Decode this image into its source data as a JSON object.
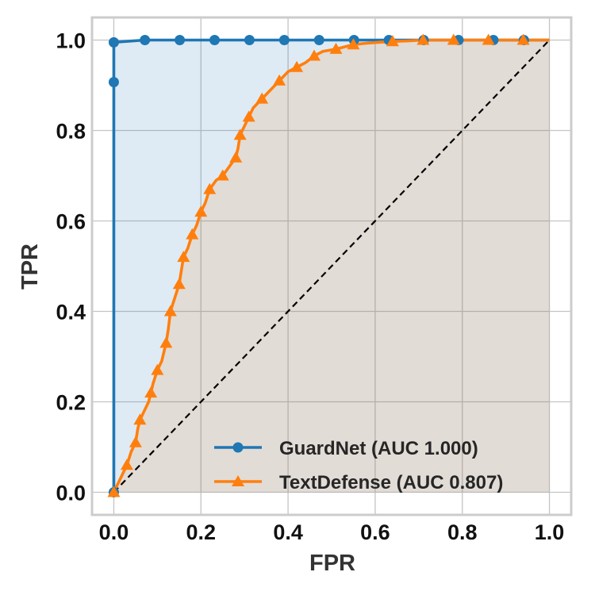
{
  "chart_data": {
    "type": "line",
    "title": "",
    "xlabel": "FPR",
    "ylabel": "TPR",
    "xlim": [
      -0.05,
      1.05
    ],
    "ylim": [
      -0.05,
      1.05
    ],
    "xticks": [
      0.0,
      0.2,
      0.4,
      0.6,
      0.8,
      1.0
    ],
    "yticks": [
      0.0,
      0.2,
      0.4,
      0.6,
      0.8,
      1.0
    ],
    "xtick_labels": [
      "0.0",
      "0.2",
      "0.4",
      "0.6",
      "0.8",
      "1.0"
    ],
    "ytick_labels": [
      "0.0",
      "0.2",
      "0.4",
      "0.6",
      "0.8",
      "1.0"
    ],
    "grid": true,
    "legend_position": "lower-right",
    "diagonal": {
      "x": [
        0,
        1
      ],
      "y": [
        0,
        1
      ],
      "style": "dashed",
      "color": "#000000"
    },
    "series": [
      {
        "name": "GuardNet (AUC 1.000)",
        "color": "#1f77b4",
        "marker": "circle",
        "fill": true,
        "x": [
          0,
          0,
          0,
          0.0714,
          0.1514,
          0.2314,
          0.3114,
          0.3914,
          0.4714,
          0.5514,
          0.6314,
          0.7114,
          0.7914,
          0.8714,
          0.9414,
          1.0
        ],
        "y": [
          0,
          0.907,
          0.995,
          1,
          1,
          1,
          1,
          1,
          1,
          1,
          1,
          1,
          1,
          1,
          1,
          1
        ],
        "marker_indices": [
          0,
          1,
          2,
          3,
          4,
          5,
          6,
          7,
          8,
          9,
          10,
          11,
          12,
          13,
          14
        ]
      },
      {
        "name": "TextDefense (AUC 0.807)",
        "color": "#ff7f0e",
        "marker": "triangle",
        "fill": true,
        "x": [
          0,
          0.01,
          0.02,
          0.03,
          0.04,
          0.05,
          0.055,
          0.06,
          0.07,
          0.08,
          0.085,
          0.09,
          0.1,
          0.11,
          0.12,
          0.125,
          0.13,
          0.14,
          0.15,
          0.155,
          0.16,
          0.17,
          0.18,
          0.19,
          0.2,
          0.21,
          0.22,
          0.235,
          0.25,
          0.265,
          0.28,
          0.285,
          0.29,
          0.3,
          0.31,
          0.32,
          0.34,
          0.36,
          0.38,
          0.4,
          0.42,
          0.44,
          0.46,
          0.48,
          0.51,
          0.55,
          0.58,
          0.61,
          0.64,
          0.67,
          0.71,
          0.78,
          0.86,
          0.94,
          1.0
        ],
        "y": [
          0,
          0.02,
          0.04,
          0.06,
          0.09,
          0.11,
          0.14,
          0.16,
          0.18,
          0.2,
          0.22,
          0.24,
          0.27,
          0.29,
          0.33,
          0.36,
          0.4,
          0.43,
          0.46,
          0.49,
          0.52,
          0.54,
          0.57,
          0.59,
          0.62,
          0.64,
          0.67,
          0.69,
          0.7,
          0.72,
          0.74,
          0.76,
          0.79,
          0.81,
          0.83,
          0.85,
          0.87,
          0.89,
          0.91,
          0.93,
          0.94,
          0.95,
          0.965,
          0.975,
          0.98,
          0.99,
          0.993,
          0.995,
          0.997,
          0.998,
          1.0,
          1.0,
          1.0,
          1.0,
          1.0
        ],
        "marker_indices": [
          0,
          3,
          5,
          7,
          10,
          12,
          14,
          16,
          18,
          20,
          22,
          24,
          26,
          28,
          30,
          32,
          34,
          36,
          38,
          40,
          42,
          44,
          45,
          48,
          50,
          51,
          52,
          53
        ]
      }
    ]
  }
}
